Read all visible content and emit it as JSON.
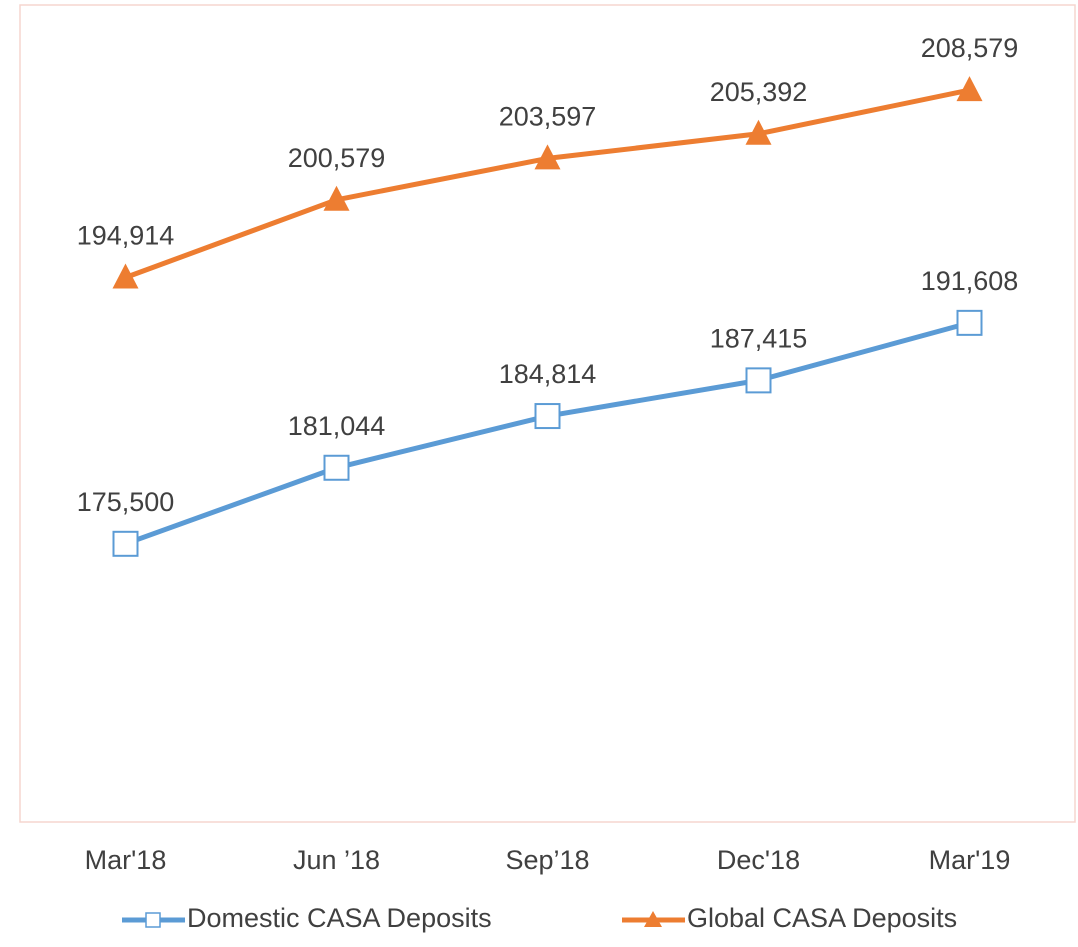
{
  "chart_data": {
    "type": "line",
    "categories": [
      "Mar'18",
      "Jun ’18",
      "Sep’18",
      "Dec'18",
      "Mar'19"
    ],
    "ylim": [
      155000,
      215000
    ],
    "grid": false,
    "legend": "bottom",
    "series": [
      {
        "name": "Domestic CASA Deposits",
        "color": "#5b9bd5",
        "marker": "square",
        "values": [
          175500,
          181044,
          184814,
          187415,
          191608
        ],
        "value_labels": [
          "175,500",
          "181,044",
          "184,814",
          "187,415",
          "191,608"
        ]
      },
      {
        "name": "Global CASA Deposits",
        "color": "#ed7d31",
        "marker": "triangle",
        "values": [
          194914,
          200579,
          203597,
          205392,
          208579
        ],
        "value_labels": [
          "194,914",
          "200,579",
          "203,597",
          "205,392",
          "208,579"
        ]
      }
    ]
  }
}
